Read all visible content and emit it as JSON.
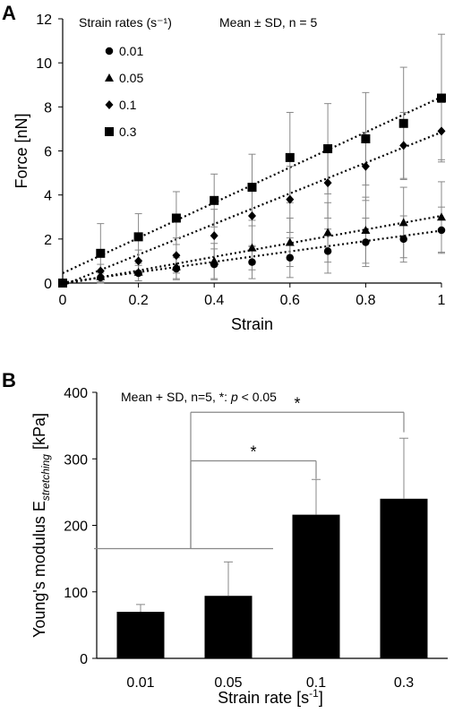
{
  "chart_data": [
    {
      "panel": "A",
      "type": "scatter",
      "xlabel": "Strain",
      "ylabel": "Force [nN]",
      "xlim": [
        0,
        1
      ],
      "ylim": [
        0,
        12
      ],
      "x_ticks": [
        "0",
        "0.2",
        "0.4",
        "0.6",
        "0.8",
        "1"
      ],
      "y_ticks": [
        "0",
        "2",
        "4",
        "6",
        "8",
        "10",
        "12"
      ],
      "x": [
        0,
        0.1,
        0.2,
        0.3,
        0.4,
        0.5,
        0.6,
        0.7,
        0.8,
        0.9,
        1.0
      ],
      "annotation": "Mean ± SD, n = 5",
      "legend_title": "Strain rates (s⁻¹)",
      "legend_position": "top-left",
      "series": [
        {
          "name": "0.01",
          "marker": "circle",
          "values": [
            0,
            0.25,
            0.45,
            0.65,
            0.85,
            0.95,
            1.15,
            1.45,
            1.85,
            2.0,
            2.4
          ],
          "sd": [
            0,
            0.2,
            0.35,
            0.5,
            0.7,
            0.75,
            0.9,
            1.0,
            1.1,
            1.05,
            1.05
          ],
          "trend": [
            0.02,
            2.38
          ]
        },
        {
          "name": "0.05",
          "marker": "triangle",
          "values": [
            0,
            0.3,
            0.5,
            0.75,
            1.0,
            1.6,
            1.85,
            2.3,
            2.4,
            2.75,
            3.0
          ],
          "sd": [
            0,
            0.25,
            0.4,
            0.55,
            0.8,
            1.0,
            1.1,
            1.35,
            1.5,
            1.6,
            1.6
          ],
          "trend": [
            -0.05,
            3.05
          ]
        },
        {
          "name": "0.1",
          "marker": "diamond",
          "values": [
            0,
            0.55,
            1.0,
            1.25,
            2.15,
            3.05,
            3.8,
            4.55,
            5.3,
            6.25,
            6.9
          ],
          "sd": [
            0,
            0.3,
            0.5,
            0.8,
            1.2,
            1.4,
            1.5,
            1.6,
            1.55,
            1.5,
            1.3
          ],
          "trend": [
            -0.1,
            6.85
          ]
        },
        {
          "name": "0.3",
          "marker": "square",
          "values": [
            0,
            1.35,
            2.1,
            2.95,
            3.75,
            4.35,
            5.7,
            6.1,
            6.55,
            7.25,
            8.4
          ],
          "sd": [
            0,
            1.35,
            1.05,
            1.2,
            1.2,
            1.5,
            2.05,
            2.05,
            2.1,
            2.55,
            2.9
          ],
          "trend": [
            0.45,
            8.45
          ]
        }
      ]
    },
    {
      "panel": "B",
      "type": "bar",
      "categories": [
        "0.01",
        "0.05",
        "0.1",
        "0.3"
      ],
      "values": [
        70,
        94,
        216,
        240
      ],
      "sd": [
        11,
        51,
        53,
        91
      ],
      "xlabel_prefix": "Strain rate [s",
      "xlabel_sup": "-1",
      "xlabel_suffix": "]",
      "ylabel_prefix": "Young's modulus E",
      "ylabel_sub": "stretching",
      "ylabel_suffix": " [kPa]",
      "ylim": [
        0,
        400
      ],
      "y_ticks": [
        "0",
        "100",
        "200",
        "300",
        "400"
      ],
      "annotation_prefix": "Mean + SD, n=5, *: ",
      "annotation_italic": "p",
      "annotation_suffix": " < 0.05",
      "significance": [
        {
          "from": "0.01-0.05",
          "to": "0.1",
          "label": "*"
        },
        {
          "from": "0.01-0.05",
          "to": "0.3",
          "label": "*"
        }
      ],
      "bar_color": "#000000"
    }
  ],
  "panels": {
    "a": "A",
    "b": "B"
  }
}
